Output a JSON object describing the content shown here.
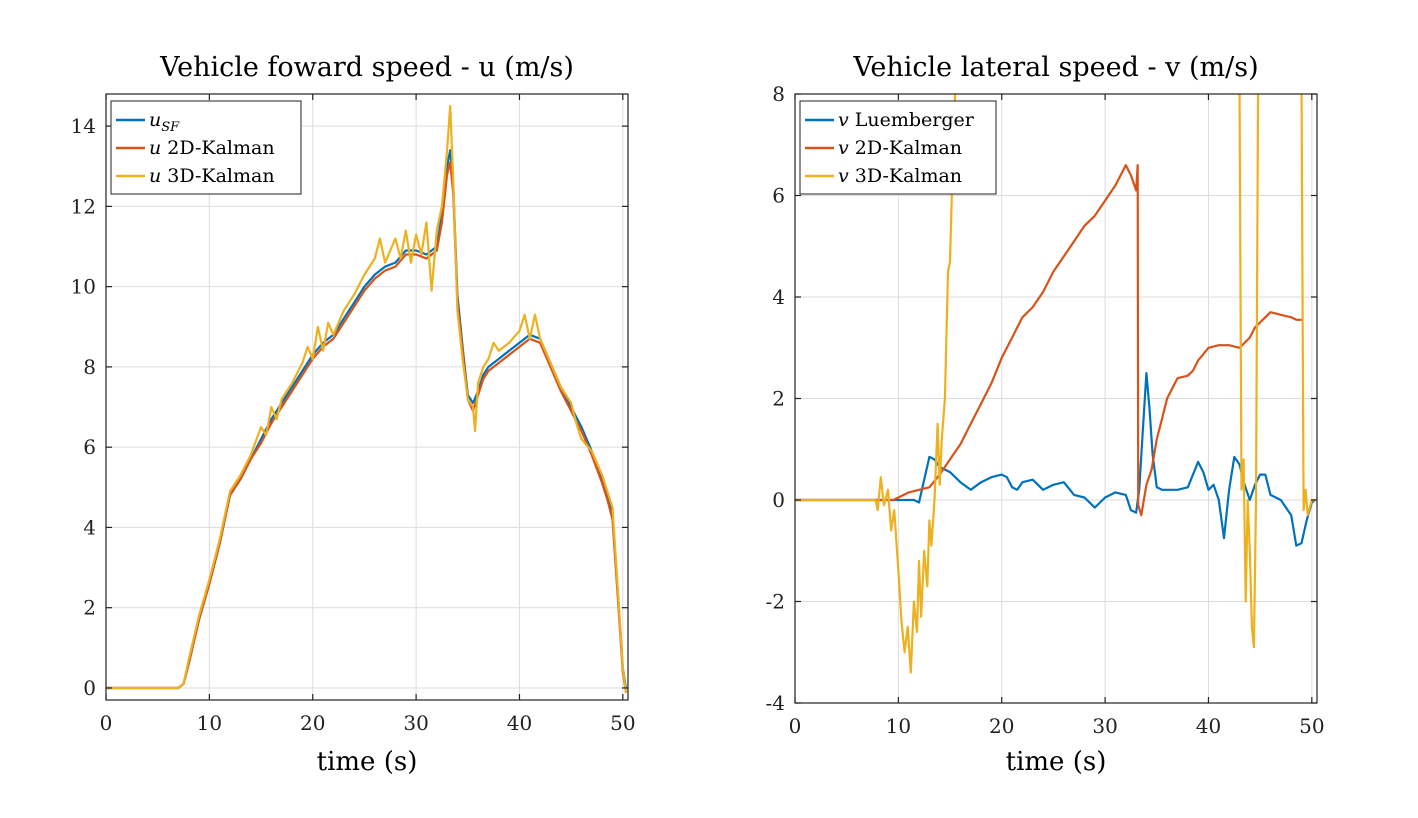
{
  "chart_data": [
    {
      "type": "line",
      "title": "Vehicle foward speed - u (m/s)",
      "xlabel": "time (s)",
      "ylabel": "",
      "xlim": [
        0,
        50.5
      ],
      "ylim": [
        -0.3,
        14.8
      ],
      "xticks": [
        0,
        10,
        20,
        30,
        40,
        50
      ],
      "yticks": [
        0,
        2,
        4,
        6,
        8,
        10,
        12,
        14
      ],
      "grid": true,
      "legend_position": "top-left",
      "series": [
        {
          "name": "u_SF",
          "legend_main": "u",
          "legend_sub": "SF",
          "color": "#0072BD",
          "x": [
            0,
            7,
            7.5,
            8,
            9,
            10,
            11,
            12,
            13,
            14,
            15,
            16,
            17,
            18,
            19,
            20,
            21,
            22,
            23,
            24,
            25,
            26,
            27,
            28,
            29,
            30,
            31,
            32,
            32.5,
            33,
            33.3,
            33.6,
            34,
            34.5,
            35,
            35.5,
            36,
            36.5,
            37,
            38,
            39,
            40,
            41,
            42,
            43,
            44,
            45,
            46,
            47,
            48,
            48.5,
            49,
            49.5,
            50,
            50.3
          ],
          "y": [
            0,
            0,
            0.1,
            0.6,
            1.7,
            2.6,
            3.6,
            4.8,
            5.2,
            5.7,
            6.2,
            6.7,
            7.1,
            7.5,
            7.9,
            8.3,
            8.6,
            8.8,
            9.2,
            9.6,
            10.0,
            10.3,
            10.5,
            10.6,
            10.9,
            10.9,
            10.8,
            11.0,
            11.8,
            13.0,
            13.4,
            12.5,
            9.8,
            8.5,
            7.3,
            7.1,
            7.4,
            7.8,
            8.0,
            8.2,
            8.4,
            8.6,
            8.8,
            8.7,
            8.1,
            7.5,
            7.0,
            6.5,
            5.9,
            5.2,
            4.8,
            4.3,
            2.4,
            0.5,
            0
          ]
        },
        {
          "name": "u 2D-Kalman",
          "legend_main": "u",
          "legend_sub": "2D-Kalman",
          "color": "#D95319",
          "x": [
            0,
            7,
            7.5,
            8,
            9,
            10,
            11,
            12,
            13,
            14,
            15,
            16,
            17,
            18,
            19,
            20,
            21,
            22,
            23,
            24,
            25,
            26,
            27,
            28,
            29,
            30,
            31,
            32,
            32.5,
            33,
            33.3,
            33.6,
            34,
            34.5,
            35,
            35.5,
            36,
            36.5,
            37,
            38,
            39,
            40,
            41,
            42,
            43,
            44,
            45,
            46,
            47,
            48,
            48.5,
            49,
            49.5,
            50,
            50.3
          ],
          "y": [
            0,
            0,
            0.1,
            0.6,
            1.7,
            2.6,
            3.6,
            4.8,
            5.2,
            5.7,
            6.1,
            6.6,
            7.0,
            7.4,
            7.8,
            8.2,
            8.5,
            8.7,
            9.1,
            9.5,
            9.9,
            10.2,
            10.4,
            10.5,
            10.8,
            10.8,
            10.7,
            10.9,
            11.6,
            12.8,
            13.1,
            12.3,
            9.6,
            8.4,
            7.2,
            6.9,
            7.3,
            7.7,
            7.9,
            8.1,
            8.3,
            8.5,
            8.7,
            8.6,
            8.0,
            7.4,
            6.9,
            6.4,
            5.8,
            5.1,
            4.7,
            4.2,
            2.3,
            0.4,
            -0.1
          ]
        },
        {
          "name": "u 3D-Kalman",
          "legend_main": "u",
          "legend_sub": "3D-Kalman",
          "color": "#EDB120",
          "x": [
            0,
            7,
            7.5,
            8,
            9,
            10,
            11,
            12,
            13,
            14,
            15,
            15.5,
            16,
            16.5,
            17,
            18,
            19,
            19.5,
            20,
            20.5,
            21,
            21.5,
            22,
            23,
            24,
            25,
            26,
            26.5,
            27,
            27.5,
            28,
            28.5,
            29,
            29.5,
            30,
            30.5,
            31,
            31.5,
            32,
            32.5,
            33,
            33.3,
            33.6,
            34,
            34.5,
            35,
            35.5,
            35.7,
            36,
            36.5,
            37,
            37.5,
            38,
            39,
            40,
            40.5,
            41,
            41.5,
            42,
            43,
            44,
            45,
            45.5,
            46,
            47,
            48,
            48.5,
            49,
            49.5,
            50,
            50.3
          ],
          "y": [
            0,
            0,
            0.1,
            0.7,
            1.8,
            2.7,
            3.7,
            4.9,
            5.3,
            5.8,
            6.5,
            6.3,
            7.0,
            6.7,
            7.2,
            7.6,
            8.1,
            8.5,
            8.2,
            9.0,
            8.4,
            9.1,
            8.8,
            9.4,
            9.8,
            10.3,
            10.7,
            11.2,
            10.6,
            10.9,
            11.2,
            10.7,
            11.4,
            10.6,
            11.3,
            10.8,
            11.6,
            9.9,
            11.4,
            12.0,
            13.4,
            14.5,
            12.6,
            9.4,
            8.2,
            7.2,
            7.0,
            6.4,
            7.6,
            8.0,
            8.2,
            8.6,
            8.4,
            8.6,
            8.9,
            9.3,
            8.7,
            9.3,
            8.7,
            8.1,
            7.5,
            7.1,
            6.6,
            6.2,
            5.9,
            5.3,
            4.9,
            4.5,
            2.5,
            0.5,
            -0.1
          ]
        }
      ]
    },
    {
      "type": "line",
      "title": "Vehicle lateral speed - v (m/s)",
      "xlabel": "time (s)",
      "ylabel": "",
      "xlim": [
        0,
        50.5
      ],
      "ylim": [
        -4,
        8
      ],
      "xticks": [
        0,
        10,
        20,
        30,
        40,
        50
      ],
      "yticks": [
        -4,
        -2,
        0,
        2,
        4,
        6,
        8
      ],
      "grid": true,
      "legend_position": "top-left",
      "series": [
        {
          "name": "v Luemberger",
          "legend_main": "v",
          "legend_sub": "Luemberger",
          "color": "#0072BD",
          "x": [
            0,
            8,
            10,
            11.5,
            12,
            12.5,
            13,
            13.5,
            14,
            15,
            16,
            17,
            18,
            19,
            20,
            20.5,
            21,
            21.5,
            22,
            23,
            24,
            25,
            26,
            27,
            28,
            29,
            30,
            31,
            32,
            32.5,
            33,
            33.3,
            33.6,
            34,
            34.3,
            34.6,
            35,
            35.5,
            36,
            37,
            38,
            38.5,
            39,
            39.5,
            40,
            40.5,
            41,
            41.5,
            42,
            42.5,
            43,
            43.5,
            44,
            44.5,
            45,
            45.5,
            46,
            47,
            48,
            48.5,
            49,
            49.5,
            50,
            50.3
          ],
          "y": [
            0,
            0,
            0,
            0,
            -0.05,
            0.4,
            0.85,
            0.8,
            0.65,
            0.55,
            0.35,
            0.2,
            0.35,
            0.45,
            0.5,
            0.45,
            0.25,
            0.2,
            0.35,
            0.4,
            0.2,
            0.3,
            0.35,
            0.1,
            0.05,
            -0.15,
            0.05,
            0.15,
            0.1,
            -0.2,
            -0.25,
            0.2,
            1.2,
            2.5,
            1.8,
            0.9,
            0.25,
            0.2,
            0.2,
            0.2,
            0.25,
            0.5,
            0.75,
            0.55,
            0.2,
            0.3,
            0.0,
            -0.75,
            0.2,
            0.85,
            0.7,
            0.3,
            0.0,
            0.3,
            0.5,
            0.5,
            0.1,
            0.0,
            -0.3,
            -0.9,
            -0.85,
            -0.4,
            -0.05,
            0
          ]
        },
        {
          "name": "v 2D-Kalman",
          "legend_main": "v",
          "legend_sub": "2D-Kalman",
          "color": "#D95319",
          "x": [
            0,
            9.5,
            10,
            11,
            12,
            13,
            14,
            15,
            16,
            17,
            18,
            19,
            20,
            21,
            22,
            23,
            24,
            25,
            26,
            27,
            28,
            29,
            30,
            31,
            31.5,
            32,
            32.5,
            33,
            33.15,
            33.2,
            33.5,
            34,
            34.5,
            35,
            35.5,
            36,
            37,
            38,
            38.5,
            39,
            40,
            41,
            42,
            43,
            44,
            44.5,
            45,
            45.5,
            46,
            47,
            48,
            48.5,
            49
          ],
          "y": [
            0,
            0,
            0.05,
            0.15,
            0.2,
            0.25,
            0.5,
            0.8,
            1.1,
            1.5,
            1.9,
            2.3,
            2.8,
            3.2,
            3.6,
            3.8,
            4.1,
            4.5,
            4.8,
            5.1,
            5.4,
            5.6,
            5.9,
            6.2,
            6.4,
            6.6,
            6.4,
            6.1,
            6.6,
            -0.1,
            -0.3,
            0.3,
            0.6,
            1.2,
            1.6,
            2.0,
            2.4,
            2.45,
            2.55,
            2.75,
            3.0,
            3.05,
            3.05,
            3.0,
            3.2,
            3.4,
            3.5,
            3.6,
            3.7,
            3.65,
            3.6,
            3.55,
            3.55
          ]
        },
        {
          "name": "v 3D-Kalman",
          "legend_main": "v",
          "legend_sub": "3D-Kalman",
          "color": "#EDB120",
          "x": [
            0,
            7.8,
            8,
            8.3,
            8.6,
            9,
            9.3,
            9.6,
            10,
            10.3,
            10.6,
            10.9,
            11.2,
            11.5,
            11.8,
            12,
            12.2,
            12.5,
            12.8,
            13,
            13.2,
            13.5,
            13.8,
            14,
            14.2,
            14.5,
            14.8,
            15,
            15.2,
            15.4,
            15.5,
            15.7,
            42.8,
            43,
            43.2,
            43.4,
            43.6,
            43.8,
            44,
            44.2,
            44.4,
            44.6,
            44.8,
            48.8,
            49,
            49.2,
            49.4,
            49.6,
            50,
            50.3
          ],
          "y": [
            0,
            0,
            -0.2,
            0.45,
            -0.1,
            0.2,
            -0.6,
            -0.2,
            -1.4,
            -2.4,
            -3.0,
            -2.5,
            -3.4,
            -2.0,
            -2.6,
            -1.2,
            -2.3,
            -1.0,
            -1.7,
            -0.4,
            -0.9,
            0.0,
            1.5,
            0.3,
            1.2,
            2.0,
            4.5,
            4.7,
            6.2,
            7.0,
            8.2,
            9.0,
            9.0,
            8.2,
            0.2,
            0.8,
            -2.0,
            0.0,
            -1.0,
            -2.5,
            -2.9,
            0.0,
            8.2,
            9.0,
            8.2,
            -0.2,
            0.2,
            -0.3,
            0.0,
            0
          ]
        }
      ]
    }
  ]
}
